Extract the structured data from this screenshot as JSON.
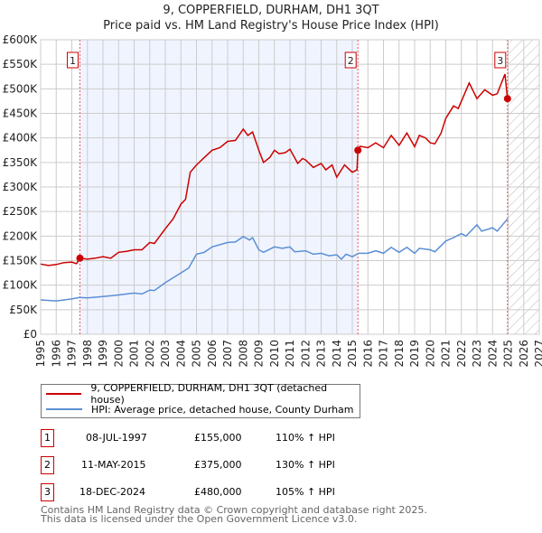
{
  "chart_data": {
    "type": "line",
    "title": "9, COPPERFIELD, DURHAM, DH1 3QT",
    "subtitle": "Price paid vs. HM Land Registry's House Price Index (HPI)",
    "xlim": [
      1995,
      2027
    ],
    "ylim": [
      0,
      600000
    ],
    "x_ticks": [
      "1995",
      "1996",
      "1997",
      "1998",
      "1999",
      "2000",
      "2001",
      "2002",
      "2003",
      "2004",
      "2005",
      "2006",
      "2007",
      "2008",
      "2009",
      "2010",
      "2011",
      "2012",
      "2013",
      "2014",
      "2015",
      "2016",
      "2017",
      "2018",
      "2019",
      "2020",
      "2021",
      "2022",
      "2023",
      "2024",
      "2025",
      "2026",
      "2027"
    ],
    "y_ticks": [
      "£0",
      "£50K",
      "£100K",
      "£150K",
      "£200K",
      "£250K",
      "£300K",
      "£350K",
      "£400K",
      "£450K",
      "£500K",
      "£550K",
      "£600K"
    ],
    "grid": true,
    "series": [
      {
        "name": "9, COPPERFIELD, DURHAM, DH1 3QT (detached house)",
        "color": "#cc0000",
        "x": [
          1995,
          1995.5,
          1996,
          1996.5,
          1997,
          1997.3,
          1997.52,
          1998,
          1998.5,
          1999,
          1999.5,
          2000,
          2000.5,
          2001,
          2001.5,
          2002,
          2002.3,
          2003,
          2003.5,
          2004,
          2004.3,
          2004.6,
          2005,
          2005.5,
          2006,
          2006.5,
          2007,
          2007.5,
          2008,
          2008.3,
          2008.6,
          2009,
          2009.3,
          2009.7,
          2010,
          2010.3,
          2010.7,
          2011,
          2011.5,
          2011.8,
          2012,
          2012.5,
          2013,
          2013.3,
          2013.7,
          2014,
          2014.5,
          2015,
          2015.3,
          2015.36,
          2015.5,
          2016,
          2016.5,
          2017,
          2017.5,
          2018,
          2018.5,
          2019,
          2019.3,
          2019.7,
          2020,
          2020.3,
          2020.7,
          2021,
          2021.5,
          2021.8,
          2022,
          2022.5,
          2023,
          2023.5,
          2024,
          2024.3,
          2024.8,
          2024.96
        ],
        "y": [
          143,
          140,
          142,
          146,
          147,
          144,
          155,
          153,
          155,
          158,
          155,
          167,
          169,
          172,
          172,
          187,
          185,
          215,
          235,
          265,
          275,
          330,
          345,
          360,
          375,
          380,
          393,
          395,
          418,
          405,
          412,
          375,
          350,
          360,
          375,
          368,
          370,
          377,
          348,
          358,
          355,
          340,
          348,
          335,
          345,
          320,
          345,
          330,
          335,
          375,
          383,
          380,
          390,
          380,
          405,
          385,
          410,
          382,
          405,
          400,
          390,
          388,
          410,
          440,
          465,
          460,
          475,
          512,
          480,
          498,
          487,
          490,
          530,
          480
        ]
      },
      {
        "name": "HPI: Average price, detached house, County Durham",
        "color": "#5b8fd4",
        "x": [
          1995,
          1996,
          1997,
          1997.5,
          1998,
          1999,
          2000,
          2001,
          2001.5,
          2002,
          2002.3,
          2003,
          2004,
          2004.5,
          2005,
          2005.5,
          2006,
          2007,
          2007.5,
          2008,
          2008.4,
          2008.6,
          2009,
          2009.3,
          2010,
          2010.5,
          2011,
          2011.3,
          2012,
          2012.5,
          2013,
          2013.5,
          2014,
          2014.3,
          2014.6,
          2015,
          2015.4,
          2016,
          2016.5,
          2017,
          2017.5,
          2018,
          2018.5,
          2019,
          2019.3,
          2020,
          2020.3,
          2021,
          2021.5,
          2022,
          2022.3,
          2023,
          2023.3,
          2024,
          2024.3,
          2024.96
        ],
        "y": [
          70,
          68,
          72,
          75,
          74,
          77,
          80,
          84,
          82,
          90,
          89,
          105,
          125,
          135,
          163,
          167,
          178,
          187,
          188,
          199,
          192,
          197,
          172,
          167,
          178,
          175,
          178,
          168,
          170,
          163,
          165,
          160,
          162,
          153,
          163,
          158,
          165,
          165,
          170,
          165,
          177,
          167,
          177,
          165,
          175,
          172,
          168,
          190,
          197,
          205,
          200,
          223,
          210,
          217,
          210,
          235
        ]
      }
    ],
    "sales": [
      {
        "label": "1",
        "date": "08-JUL-1997",
        "price": "£155,000",
        "hpi": "110% ↑ HPI",
        "x": 1997.52,
        "y": 155
      },
      {
        "label": "2",
        "date": "11-MAY-2015",
        "price": "£375,000",
        "hpi": "130% ↑ HPI",
        "x": 2015.36,
        "y": 375
      },
      {
        "label": "3",
        "date": "18-DEC-2024",
        "price": "£480,000",
        "hpi": "105% ↑ HPI",
        "x": 2024.96,
        "y": 480
      }
    ],
    "shade_color": "#f0f4ff"
  },
  "footer": {
    "line1": "Contains HM Land Registry data © Crown copyright and database right 2025.",
    "line2": "This data is licensed under the Open Government Licence v3.0."
  }
}
